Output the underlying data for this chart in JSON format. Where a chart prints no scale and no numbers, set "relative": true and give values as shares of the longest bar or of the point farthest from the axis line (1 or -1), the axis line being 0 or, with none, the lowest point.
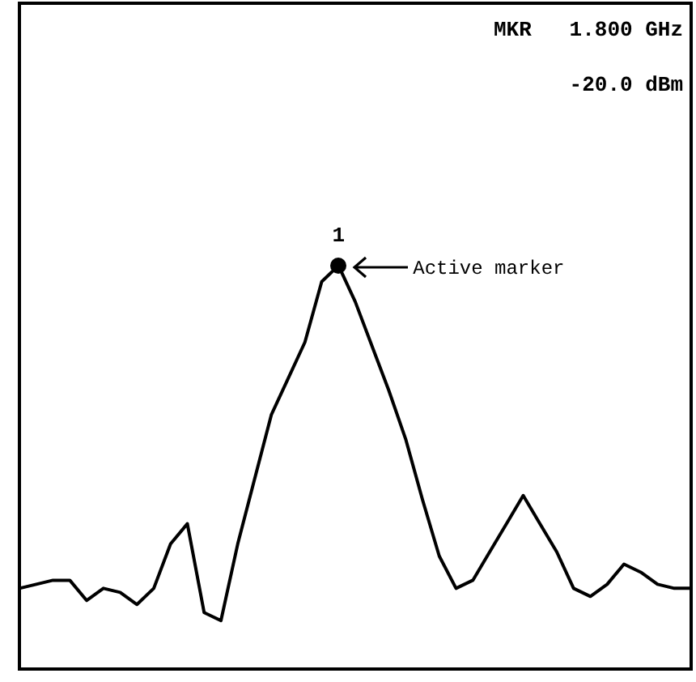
{
  "chart_data": {
    "type": "line",
    "relative": true,
    "marker": "none",
    "grid": false,
    "categories": [
      null,
      null,
      null,
      null,
      null,
      null,
      null,
      null,
      null,
      null,
      null,
      null,
      null,
      null,
      null,
      null,
      null,
      null,
      null,
      null,
      null,
      null,
      null,
      null,
      null,
      null,
      null,
      null,
      null,
      null,
      null,
      null,
      null,
      null,
      null,
      null,
      null,
      null,
      null,
      null,
      null
    ],
    "series": [
      {
        "color": "#000000",
        "values": [
          0.2,
          0.21,
          0.22,
          0.22,
          0.17,
          0.2,
          0.19,
          0.16,
          0.2,
          0.31,
          0.36,
          0.14,
          0.12,
          0.31,
          0.47,
          0.63,
          0.72,
          0.81,
          0.96,
          1,
          0.91,
          0.8,
          0.69,
          0.57,
          0.42,
          0.28,
          0.2,
          0.22,
          0.29,
          0.36,
          0.43,
          0.36,
          0.29,
          0.2,
          0.18,
          0.21,
          0.26,
          0.24,
          0.21,
          0.2,
          0.2
        ]
      }
    ],
    "annotations": [
      "MKR   1.800 GHz",
      "-20.0 dBm",
      "1",
      "Active marker"
    ]
  }
}
